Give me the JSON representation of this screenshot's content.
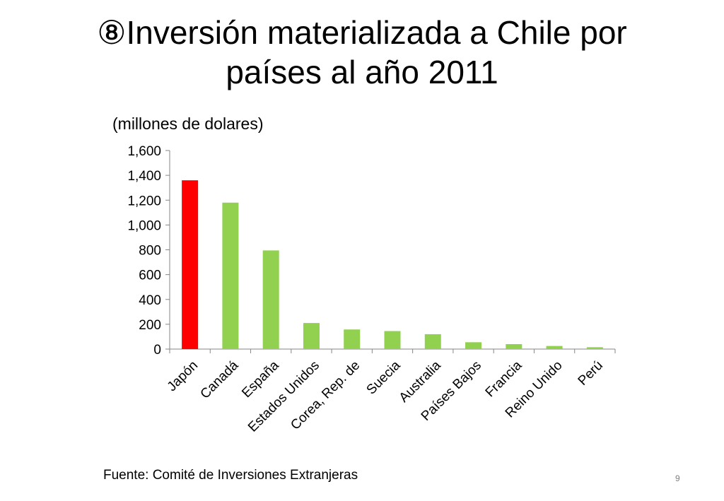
{
  "slide": {
    "title_line1": "⑧Inversión materializada a Chile por",
    "title_line2": "países al año 2011",
    "subtitle": "(millones de dolares)",
    "source": "Fuente: Comité de Inversiones Extranjeras",
    "page_number": "9"
  },
  "chart_data": {
    "type": "bar",
    "title": "",
    "xlabel": "",
    "ylabel": "",
    "categories": [
      "Japón",
      "Canadá",
      "España",
      "Estados Unidos",
      "Corea, Rep. de",
      "Suecia",
      "Australia",
      "Países Bajos",
      "Francia",
      "Reino Unido",
      "Perú"
    ],
    "values": [
      1360,
      1180,
      795,
      210,
      158,
      145,
      120,
      55,
      40,
      25,
      15
    ],
    "ylim": [
      0,
      1600
    ],
    "yticks": [
      0,
      200,
      400,
      600,
      800,
      1000,
      1200,
      1400,
      1600
    ],
    "ytick_labels": [
      "0",
      "200",
      "400",
      "600",
      "800",
      "1,000",
      "1,200",
      "1,400",
      "1,600"
    ],
    "grid": false,
    "legend": "none",
    "bar_colors": [
      "#ff0000",
      "#92d050",
      "#92d050",
      "#92d050",
      "#92d050",
      "#92d050",
      "#92d050",
      "#92d050",
      "#92d050",
      "#92d050",
      "#92d050"
    ],
    "axis_color": "#868686"
  }
}
